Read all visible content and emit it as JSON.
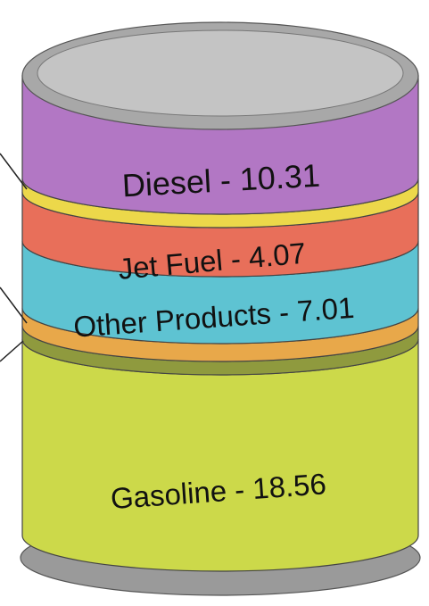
{
  "segments": [
    {
      "label": "Diesel - 10.31"
    },
    {
      "label": "Jet Fuel - 4.07"
    },
    {
      "label": "Other Products - 7.01"
    },
    {
      "label": "Gasoline - 18.56"
    }
  ]
}
